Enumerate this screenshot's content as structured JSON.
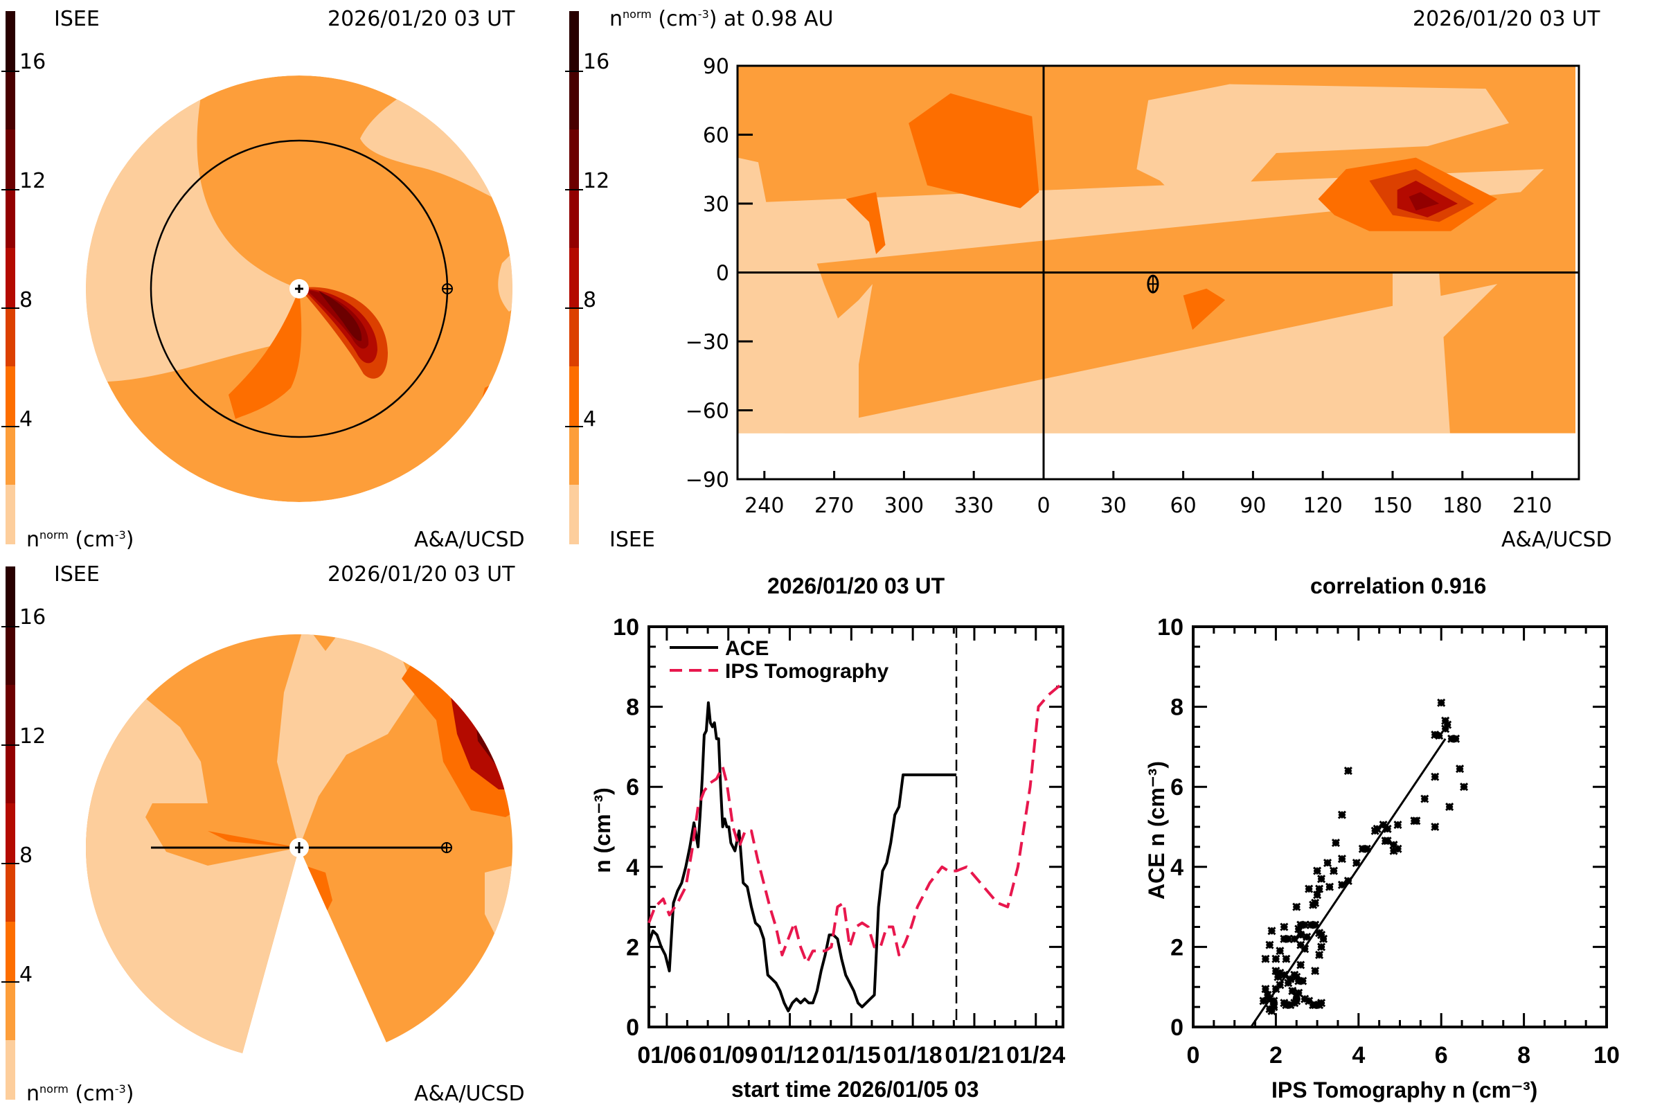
{
  "palette": [
    "#FDCE9C",
    "#FD9E3A",
    "#FD6E00",
    "#DC4000",
    "#B40A00",
    "#920000",
    "#6C0000",
    "#480000",
    "#280000"
  ],
  "colorbar": {
    "levels": [
      0,
      2,
      4,
      6,
      8,
      10,
      12,
      14,
      16,
      18
    ],
    "tick_labels": [
      "4",
      "8",
      "12",
      "16"
    ],
    "tick_values": [
      4,
      8,
      12,
      16
    ],
    "unit_label_base": "n",
    "unit_label_sup": "norm",
    "unit_label_rest": " (cm",
    "unit_label_exp": "-3",
    "unit_label_close": ")"
  },
  "panel_ecliptic": {
    "left_header": "ISEE",
    "right_header": "2026/01/20 03 UT",
    "footer_right": "A&A/UCSD",
    "sun_symbol": "+",
    "earth_symbol": "⊕"
  },
  "panel_map": {
    "title_base": "n",
    "title_sup": "norm",
    "title_mid": " (cm",
    "title_exp": "-3",
    "title_rest": ") at 0.98 AU",
    "right_header": "2026/01/20 03 UT",
    "footer_left": "ISEE",
    "footer_right": "A&A/UCSD",
    "x_ticks": [
      "240",
      "270",
      "300",
      "330",
      "0",
      "30",
      "60",
      "90",
      "120",
      "150",
      "180",
      "210"
    ],
    "y_ticks": [
      "90",
      "60",
      "30",
      "0",
      "−30",
      "−60",
      "−90"
    ],
    "earth_symbol": "⊕"
  },
  "panel_meridional": {
    "left_header": "ISEE",
    "right_header": "2026/01/20 03 UT",
    "footer_right": "A&A/UCSD"
  },
  "chart_data": [
    {
      "type": "line",
      "title": "2026/01/20 03 UT",
      "xlabel": "start time 2026/01/05 03",
      "ylabel": "n (cm⁻³)",
      "ylim": [
        0,
        10
      ],
      "xlim_days": [
        0,
        20.2
      ],
      "x_tick_labels": [
        "01/06",
        "01/09",
        "01/12",
        "01/15",
        "01/18",
        "01/21",
        "01/24"
      ],
      "x_tick_days": [
        0.875,
        3.875,
        6.875,
        9.875,
        12.875,
        15.875,
        18.875
      ],
      "y_ticks": [
        0,
        2,
        4,
        6,
        8,
        10
      ],
      "current_time_marker_day": 15.0,
      "legend": [
        "ACE",
        "IPS Tomography"
      ],
      "legend_position": "top-left",
      "series": [
        {
          "name": "ACE",
          "color": "#000000",
          "style": "solid",
          "x": [
            0,
            0.2,
            0.4,
            0.6,
            0.8,
            1.0,
            1.2,
            1.4,
            1.6,
            1.8,
            2.0,
            2.2,
            2.4,
            2.5,
            2.6,
            2.7,
            2.8,
            2.9,
            3.0,
            3.1,
            3.2,
            3.3,
            3.4,
            3.5,
            3.6,
            3.7,
            3.8,
            3.9,
            4.0,
            4.2,
            4.4,
            4.6,
            4.8,
            5.0,
            5.2,
            5.4,
            5.6,
            5.8,
            6.0,
            6.2,
            6.4,
            6.6,
            6.8,
            7.0,
            7.2,
            7.4,
            7.6,
            7.8,
            8.0,
            8.2,
            8.4,
            8.6,
            8.8,
            9.0,
            9.2,
            9.4,
            9.6,
            9.8,
            10.0,
            10.2,
            10.4,
            10.6,
            10.8,
            11.0,
            11.2,
            11.4,
            11.6,
            11.8,
            12.0,
            12.2,
            12.4,
            12.6,
            12.8,
            13.0,
            13.2,
            13.4,
            13.6,
            13.8,
            14.0,
            14.2,
            14.4,
            14.6,
            14.8,
            15.0
          ],
          "y": [
            2.1,
            2.4,
            2.3,
            2.0,
            1.8,
            1.4,
            3.1,
            3.4,
            3.6,
            4.0,
            4.5,
            5.1,
            4.5,
            5.3,
            6.2,
            7.3,
            7.4,
            8.1,
            7.6,
            7.5,
            7.6,
            7.2,
            7.2,
            6.0,
            5.0,
            5.2,
            5.0,
            5.0,
            4.6,
            4.4,
            4.9,
            3.6,
            3.5,
            3.0,
            2.6,
            2.5,
            2.2,
            1.3,
            1.2,
            1.1,
            0.9,
            0.6,
            0.4,
            0.6,
            0.7,
            0.6,
            0.7,
            0.6,
            0.6,
            0.9,
            1.4,
            1.8,
            2.3,
            2.3,
            2.2,
            1.7,
            1.3,
            1.1,
            0.9,
            0.6,
            0.5,
            0.6,
            0.7,
            0.8,
            3.0,
            3.9,
            4.1,
            4.6,
            5.3,
            5.5,
            6.3,
            6.3,
            6.3,
            6.3,
            6.3,
            6.3,
            6.3,
            6.3,
            6.3,
            6.3,
            6.3,
            6.3,
            6.3,
            6.3
          ],
          "end_day": 15.0
        },
        {
          "name": "IPS Tomography",
          "color": "#E8174D",
          "style": "dashed",
          "x": [
            0,
            0.3,
            0.7,
            1.0,
            1.4,
            1.8,
            2.1,
            2.4,
            2.7,
            3.0,
            3.3,
            3.6,
            3.8,
            4.1,
            4.4,
            4.7,
            5.0,
            5.3,
            5.6,
            5.9,
            6.2,
            6.5,
            6.8,
            7.1,
            7.4,
            7.7,
            8.0,
            8.3,
            8.6,
            8.9,
            9.2,
            9.5,
            9.8,
            10.1,
            10.4,
            10.7,
            11.0,
            11.3,
            11.6,
            11.9,
            12.2,
            12.5,
            12.8,
            13.1,
            13.4,
            13.7,
            14.0,
            14.3,
            14.6,
            15.0,
            15.5,
            16.0,
            16.5,
            17.0,
            17.5,
            18.0,
            18.6,
            19.0,
            19.5,
            20.2
          ],
          "y": [
            2.6,
            3.0,
            3.2,
            2.8,
            3.1,
            3.5,
            4.4,
            5.5,
            5.9,
            6.1,
            6.2,
            6.5,
            6.1,
            5.0,
            4.5,
            4.9,
            4.9,
            4.2,
            3.6,
            3.0,
            2.5,
            1.8,
            2.2,
            2.6,
            2.0,
            1.6,
            1.9,
            1.9,
            1.9,
            2.0,
            3.0,
            3.1,
            2.0,
            2.5,
            2.6,
            2.5,
            2.0,
            2.0,
            2.5,
            2.5,
            1.8,
            2.1,
            2.5,
            3.0,
            3.3,
            3.6,
            3.8,
            4.0,
            3.9,
            3.9,
            4.0,
            3.7,
            3.4,
            3.1,
            3.0,
            4.0,
            6.0,
            8.0,
            8.3,
            8.6
          ]
        }
      ]
    },
    {
      "type": "scatter",
      "title": "correlation 0.916",
      "xlabel": "IPS Tomography n (cm⁻³)",
      "ylabel": "ACE n (cm⁻³)",
      "xlim": [
        0,
        10
      ],
      "ylim": [
        0,
        10
      ],
      "x_ticks": [
        0,
        2,
        4,
        6,
        8,
        10
      ],
      "y_ticks": [
        0,
        2,
        4,
        6,
        8,
        10
      ],
      "correlation": 0.916,
      "fit_line": {
        "x": [
          1.4,
          6.1
        ],
        "y": [
          0.0,
          7.2
        ]
      },
      "marker": "asterisk",
      "points": [
        [
          6.0,
          8.1
        ],
        [
          6.1,
          7.65
        ],
        [
          6.15,
          7.55
        ],
        [
          6.1,
          7.45
        ],
        [
          5.85,
          7.3
        ],
        [
          5.95,
          7.28
        ],
        [
          6.25,
          7.2
        ],
        [
          6.35,
          7.2
        ],
        [
          3.75,
          6.4
        ],
        [
          6.45,
          6.45
        ],
        [
          5.85,
          6.25
        ],
        [
          6.55,
          6.0
        ],
        [
          5.6,
          5.7
        ],
        [
          6.2,
          5.5
        ],
        [
          3.6,
          5.3
        ],
        [
          5.4,
          5.15
        ],
        [
          5.35,
          5.15
        ],
        [
          5.85,
          5.0
        ],
        [
          4.95,
          5.05
        ],
        [
          4.6,
          5.05
        ],
        [
          4.45,
          4.95
        ],
        [
          4.7,
          4.95
        ],
        [
          4.4,
          4.9
        ],
        [
          4.65,
          4.65
        ],
        [
          4.7,
          4.65
        ],
        [
          4.85,
          4.55
        ],
        [
          4.95,
          4.45
        ],
        [
          4.85,
          4.4
        ],
        [
          4.2,
          4.45
        ],
        [
          4.1,
          4.45
        ],
        [
          3.45,
          4.6
        ],
        [
          3.6,
          4.2
        ],
        [
          3.95,
          4.1
        ],
        [
          3.25,
          4.1
        ],
        [
          3.4,
          3.9
        ],
        [
          3.0,
          3.9
        ],
        [
          3.1,
          3.7
        ],
        [
          3.75,
          3.65
        ],
        [
          3.6,
          3.55
        ],
        [
          3.3,
          3.5
        ],
        [
          3.05,
          3.45
        ],
        [
          2.8,
          3.45
        ],
        [
          3.0,
          3.3
        ],
        [
          2.95,
          3.1
        ],
        [
          2.9,
          3.05
        ],
        [
          2.5,
          3.0
        ],
        [
          2.6,
          2.55
        ],
        [
          2.7,
          2.55
        ],
        [
          2.85,
          2.55
        ],
        [
          2.95,
          2.55
        ],
        [
          2.55,
          2.45
        ],
        [
          3.05,
          2.35
        ],
        [
          3.1,
          2.3
        ],
        [
          2.6,
          2.3
        ],
        [
          2.75,
          2.25
        ],
        [
          3.15,
          2.2
        ],
        [
          2.45,
          2.2
        ],
        [
          2.2,
          2.2
        ],
        [
          2.3,
          2.2
        ],
        [
          1.9,
          2.4
        ],
        [
          2.2,
          2.5
        ],
        [
          1.85,
          2.05
        ],
        [
          2.6,
          2.05
        ],
        [
          2.1,
          1.9
        ],
        [
          2.7,
          1.95
        ],
        [
          3.1,
          2.0
        ],
        [
          3.05,
          1.8
        ],
        [
          1.75,
          1.7
        ],
        [
          2.0,
          1.7
        ],
        [
          2.25,
          1.7
        ],
        [
          2.6,
          1.55
        ],
        [
          2.0,
          1.4
        ],
        [
          2.1,
          1.35
        ],
        [
          2.05,
          1.25
        ],
        [
          2.2,
          1.3
        ],
        [
          2.95,
          1.4
        ],
        [
          2.45,
          1.3
        ],
        [
          2.5,
          1.25
        ],
        [
          2.35,
          1.2
        ],
        [
          2.55,
          1.15
        ],
        [
          2.65,
          1.15
        ],
        [
          2.3,
          1.1
        ],
        [
          2.1,
          1.05
        ],
        [
          1.75,
          0.95
        ],
        [
          2.0,
          0.95
        ],
        [
          2.4,
          0.9
        ],
        [
          2.55,
          0.85
        ],
        [
          1.8,
          0.8
        ],
        [
          2.5,
          0.75
        ],
        [
          1.85,
          0.7
        ],
        [
          1.95,
          0.65
        ],
        [
          2.5,
          0.65
        ],
        [
          1.7,
          0.65
        ],
        [
          1.95,
          0.55
        ],
        [
          2.25,
          0.55
        ],
        [
          2.35,
          0.55
        ],
        [
          2.45,
          0.6
        ],
        [
          2.7,
          0.7
        ],
        [
          2.8,
          0.65
        ],
        [
          2.2,
          0.6
        ],
        [
          1.85,
          0.45
        ],
        [
          1.9,
          0.4
        ],
        [
          1.95,
          0.5
        ],
        [
          2.95,
          0.55
        ],
        [
          3.05,
          0.55
        ],
        [
          3.1,
          0.6
        ],
        [
          2.9,
          0.55
        ]
      ]
    }
  ]
}
